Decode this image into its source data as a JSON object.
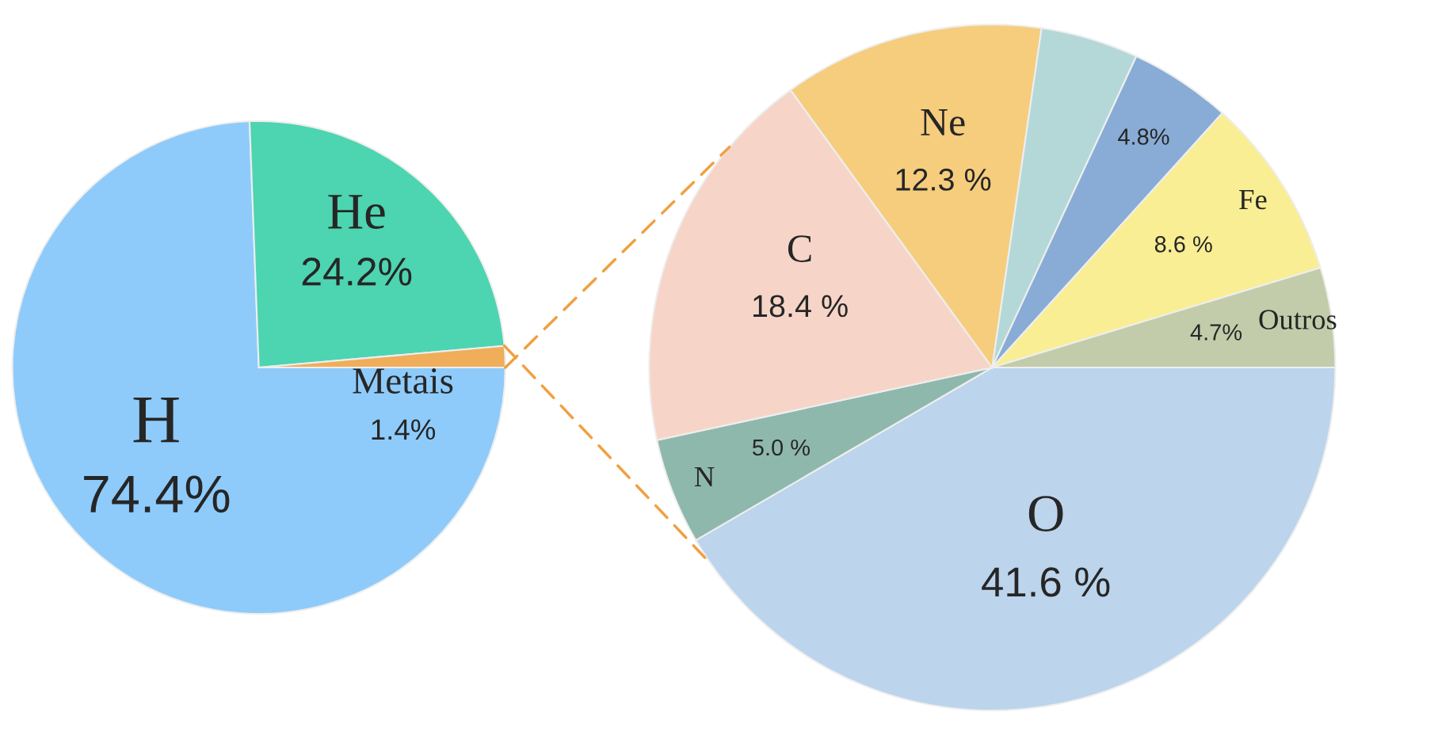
{
  "chart_data": [
    {
      "type": "pie",
      "categories": [
        "H",
        "He",
        "Metais"
      ],
      "values": [
        74.4,
        24.2,
        1.4
      ],
      "colors": [
        "#8ecbfb",
        "#4dd4b0",
        "#f0ad5a"
      ],
      "value_labels": [
        "74.4%",
        "24.2%",
        "1.4%"
      ]
    },
    {
      "type": "pie",
      "categories": [
        "O",
        "N",
        "C",
        "Ne",
        null,
        null,
        "Fe",
        "Outros"
      ],
      "values": [
        41.6,
        5.0,
        18.4,
        12.3,
        4.6,
        4.8,
        8.6,
        4.7
      ],
      "colors": [
        "#bcd4ec",
        "#8fb8ad",
        "#f6d5c8",
        "#f6cd7d",
        "#b4d8d8",
        "#88acd6",
        "#f9ee94",
        "#c2ccaa"
      ],
      "value_labels": [
        "41.6 %",
        "5.0 %",
        "18.4 %",
        "12.3 %",
        null,
        "4.8%",
        "8.6 %",
        "4.7%"
      ]
    }
  ]
}
